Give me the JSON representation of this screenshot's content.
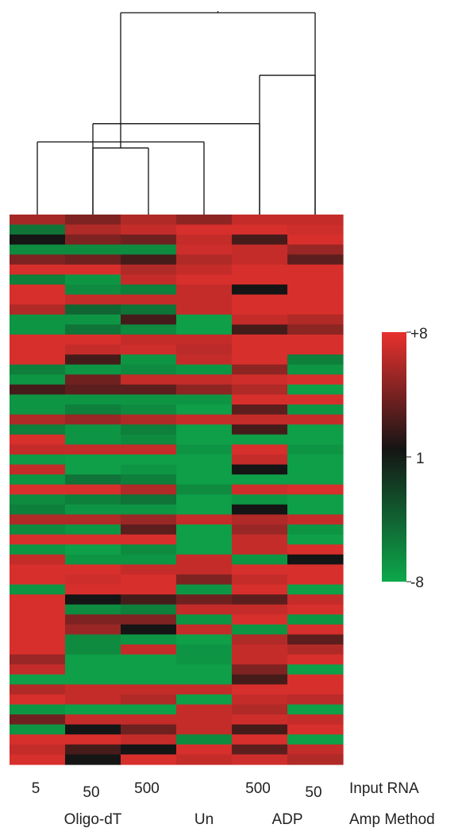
{
  "chart_data": {
    "type": "heatmap",
    "columns": [
      {
        "input_rna": "5",
        "method": "Oligo-dT"
      },
      {
        "input_rna": "50",
        "method": "Oligo-dT"
      },
      {
        "input_rna": "500",
        "method": "Oligo-dT"
      },
      {
        "input_rna": "",
        "method": "Un"
      },
      {
        "input_rna": "500",
        "method": "ADP"
      },
      {
        "input_rna": "50",
        "method": "ADP"
      }
    ],
    "row_labels": {
      "input_rna": "Input RNA",
      "amp_method": "Amp Method"
    },
    "method_labels": [
      "Oligo-dT",
      "Un",
      "ADP"
    ],
    "color_scale": {
      "min": -8,
      "mid": 1,
      "max": 8,
      "tick_labels": [
        "+8",
        "1",
        "-8"
      ],
      "low_color": "#0da84b",
      "mid_color": "#151515",
      "high_color": "#e8312e"
    },
    "dendrogram": [
      {
        "left": 1,
        "right": 2,
        "height": 0.33
      },
      {
        "left": 3,
        "right": 0,
        "height": 0.36
      },
      {
        "left": 4,
        "right": 1,
        "height": 0.45
      },
      {
        "left": 5,
        "right": 4,
        "height": 0.69
      },
      {
        "left": 6,
        "right": 5,
        "height": 1.0
      }
    ],
    "values": [
      [
        4.5,
        3.0,
        5.0,
        3.5,
        6.0,
        6.0
      ],
      [
        -3.0,
        5.0,
        6.0,
        7.0,
        7.0,
        6.5
      ],
      [
        1.0,
        3.0,
        2.5,
        6.0,
        1.5,
        7.0
      ],
      [
        -5.0,
        -5.0,
        -5.0,
        6.5,
        6.0,
        4.0
      ],
      [
        3.0,
        2.5,
        1.5,
        5.0,
        6.0,
        2.0
      ],
      [
        7.0,
        7.0,
        5.0,
        6.0,
        7.0,
        7.0
      ],
      [
        -4.0,
        -6.0,
        6.0,
        7.0,
        7.0,
        7.0
      ],
      [
        7.0,
        -5.0,
        -4.0,
        6.0,
        1.0,
        7.0
      ],
      [
        7.0,
        6.0,
        6.0,
        6.0,
        7.0,
        7.0
      ],
      [
        5.0,
        -2.0,
        -3.0,
        6.0,
        7.0,
        7.0
      ],
      [
        -6.0,
        -6.0,
        1.5,
        -7.0,
        6.0,
        5.0
      ],
      [
        -6.0,
        -3.0,
        -5.0,
        -7.0,
        1.5,
        3.5
      ],
      [
        7.0,
        7.0,
        6.0,
        6.0,
        7.0,
        7.0
      ],
      [
        7.0,
        6.0,
        6.5,
        5.5,
        7.0,
        7.0
      ],
      [
        7.0,
        1.5,
        -6.0,
        6.0,
        7.0,
        -4.0
      ],
      [
        -4.0,
        -6.0,
        -5.0,
        -6.0,
        3.5,
        -6.0
      ],
      [
        -6.0,
        2.5,
        6.0,
        6.0,
        6.5,
        7.0
      ],
      [
        1.5,
        2.0,
        2.0,
        3.5,
        5.0,
        -7.0
      ],
      [
        -6.0,
        -6.0,
        -6.0,
        -6.0,
        7.0,
        7.0
      ],
      [
        -6.0,
        -4.0,
        -5.0,
        -7.0,
        2.0,
        -6.0
      ],
      [
        5.0,
        4.0,
        5.0,
        6.0,
        6.0,
        6.0
      ],
      [
        -4.0,
        -6.0,
        -4.0,
        -7.0,
        1.5,
        -7.0
      ],
      [
        7.0,
        -6.0,
        -5.0,
        -7.0,
        -7.0,
        -7.0
      ],
      [
        6.0,
        6.0,
        6.0,
        -6.0,
        7.0,
        -6.0
      ],
      [
        -6.5,
        -7.0,
        -7.0,
        -7.0,
        6.0,
        -7.0
      ],
      [
        6.0,
        -7.0,
        -6.0,
        -7.0,
        1.0,
        -7.0
      ],
      [
        -6.0,
        -3.0,
        -4.0,
        -7.0,
        -7.0,
        -7.0
      ],
      [
        7.0,
        7.0,
        5.0,
        -5.0,
        6.5,
        7.0
      ],
      [
        -5.0,
        -4.0,
        -3.0,
        -7.0,
        -6.0,
        -7.0
      ],
      [
        -4.0,
        -6.0,
        -6.0,
        -7.0,
        1.0,
        -7.0
      ],
      [
        5.0,
        5.0,
        4.0,
        6.0,
        5.0,
        6.0
      ],
      [
        -5.0,
        -6.0,
        2.0,
        -7.0,
        4.0,
        -6.0
      ],
      [
        7.0,
        7.0,
        7.0,
        -7.0,
        6.0,
        -7.0
      ],
      [
        -6.0,
        -7.0,
        -5.0,
        -7.0,
        6.0,
        7.0
      ],
      [
        6.0,
        -6.0,
        -6.0,
        6.0,
        -6.0,
        1.0
      ],
      [
        7.0,
        7.0,
        6.0,
        6.0,
        7.0,
        7.0
      ],
      [
        7.0,
        6.5,
        7.0,
        3.0,
        6.0,
        7.0
      ],
      [
        -6.0,
        7.0,
        7.0,
        -6.0,
        7.0,
        -7.0
      ],
      [
        7.0,
        1.0,
        1.5,
        2.5,
        2.0,
        6.0
      ],
      [
        7.0,
        -5.0,
        -4.0,
        6.0,
        6.0,
        7.0
      ],
      [
        7.0,
        3.0,
        3.0,
        -6.0,
        7.0,
        -6.0
      ],
      [
        7.0,
        4.0,
        1.0,
        6.0,
        -6.0,
        7.0
      ],
      [
        7.0,
        -5.0,
        -6.0,
        -7.0,
        5.0,
        2.0
      ],
      [
        7.0,
        -5.0,
        6.0,
        -6.0,
        6.0,
        5.0
      ],
      [
        4.0,
        -7.0,
        -7.0,
        -6.0,
        6.0,
        7.0
      ],
      [
        6.0,
        -7.0,
        -7.0,
        -7.0,
        3.0,
        -7.0
      ],
      [
        -7.0,
        -7.0,
        -7.0,
        -7.0,
        1.5,
        7.0
      ],
      [
        5.0,
        6.0,
        6.0,
        6.0,
        7.0,
        7.0
      ],
      [
        7.0,
        6.0,
        5.0,
        -7.0,
        6.0,
        5.5
      ],
      [
        -6.0,
        -7.0,
        -7.0,
        6.0,
        5.0,
        -7.0
      ],
      [
        2.5,
        6.0,
        6.0,
        6.0,
        6.5,
        6.0
      ],
      [
        -6.0,
        1.0,
        2.5,
        6.0,
        1.5,
        7.0
      ],
      [
        7.0,
        7.0,
        6.0,
        -5.0,
        7.0,
        -7.0
      ],
      [
        6.0,
        1.5,
        1.0,
        7.0,
        2.0,
        6.0
      ],
      [
        7.0,
        1.0,
        7.0,
        6.0,
        6.5,
        5.0
      ]
    ]
  }
}
